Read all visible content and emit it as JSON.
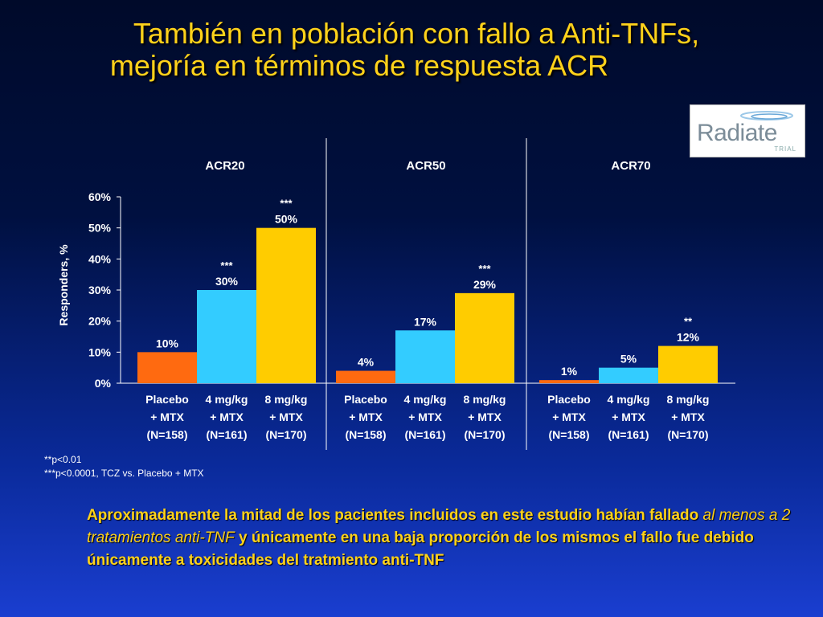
{
  "title_line1": "También en población con  fallo a Anti-TNFs,",
  "title_line2": "mejoría en términos de respuesta ACR",
  "logo": {
    "word": "Radiate",
    "sub": "TRIAL"
  },
  "colors": {
    "placebo": "#ff6a10",
    "mg4": "#33ccff",
    "mg8": "#ffcc00",
    "title": "#ffd21a"
  },
  "chart_data": {
    "type": "bar",
    "ylabel": "Responders, %",
    "ylim": [
      0,
      60
    ],
    "yticks": [
      "0%",
      "10%",
      "20%",
      "30%",
      "40%",
      "50%",
      "60%"
    ],
    "groups": [
      {
        "name": "ACR20",
        "bars": [
          {
            "value": 10,
            "label": "10%",
            "sig": ""
          },
          {
            "value": 30,
            "label": "30%",
            "sig": "***"
          },
          {
            "value": 50,
            "label": "50%",
            "sig": "***"
          }
        ]
      },
      {
        "name": "ACR50",
        "bars": [
          {
            "value": 4,
            "label": "4%",
            "sig": ""
          },
          {
            "value": 17,
            "label": "17%",
            "sig": ""
          },
          {
            "value": 29,
            "label": "29%",
            "sig": "***"
          }
        ]
      },
      {
        "name": "ACR70",
        "bars": [
          {
            "value": 1,
            "label": "1%",
            "sig": ""
          },
          {
            "value": 5,
            "label": "5%",
            "sig": ""
          },
          {
            "value": 12,
            "label": "12%",
            "sig": "**"
          }
        ]
      }
    ],
    "categories": [
      [
        "Placebo",
        "+ MTX",
        "(N=158)"
      ],
      [
        "4 mg/kg",
        "+ MTX",
        "(N=161)"
      ],
      [
        "8 mg/kg",
        "+ MTX",
        "(N=170)"
      ]
    ]
  },
  "footnotes": [
    "**p<0.01",
    "***p<0.0001, TCZ vs. Placebo + MTX"
  ],
  "bottom": {
    "part1": "Aproximadamente la mitad de los pacientes incluidos en este estudio habían fallado ",
    "italic": "al menos a 2 tratamientos anti-TNF",
    "part2": " y únicamente en una baja proporción de los mismos el fallo fue debido únicamente a toxicidades del tratmiento anti-TNF"
  }
}
